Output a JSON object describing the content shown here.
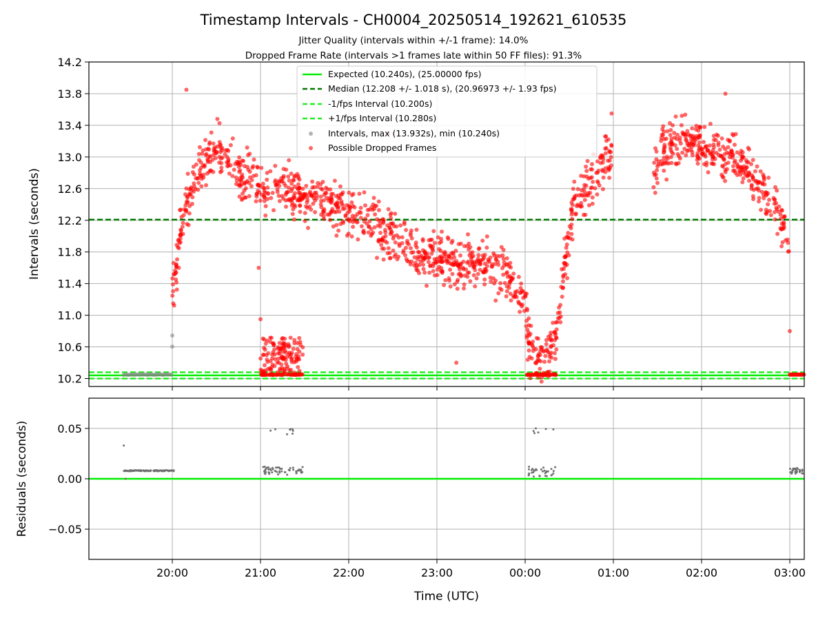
{
  "chart_data": {
    "type": "scatter",
    "title": "Timestamp Intervals - CH0004_20250514_192621_610535",
    "subtitle_lines": [
      "Jitter Quality (intervals within +/-1 frame): 14.0%",
      "Dropped Frame Rate (intervals >1 frames late within 50 FF files): 91.3%"
    ],
    "xlabel": "Time (UTC)",
    "x_ticks": [
      "20:00",
      "21:00",
      "22:00",
      "23:00",
      "00:00",
      "01:00",
      "02:00",
      "03:00"
    ],
    "grid": true,
    "legend_position": "top-center",
    "colors": {
      "expected": "#00ee00",
      "median": "#007700",
      "fps_bounds": "#22ee22",
      "intervals": "#808080",
      "dropped": "#ff0000",
      "residuals": "#707070"
    },
    "top_panel": {
      "ylabel": "Intervals (seconds)",
      "ylim": [
        10.1,
        14.2
      ],
      "y_ticks": [
        "10.2",
        "10.6",
        "11.0",
        "11.4",
        "11.8",
        "12.2",
        "12.6",
        "13.0",
        "13.4",
        "13.8",
        "14.2"
      ],
      "reference_lines": [
        {
          "name": "Expected (10.240s), (25.00000 fps)",
          "y": 10.24,
          "style": "solid",
          "color_key": "expected"
        },
        {
          "name": "Median (12.208 +/- 1.018 s), (20.96973 +/- 1.93 fps)",
          "y": 12.208,
          "style": "dashed",
          "color_key": "median"
        },
        {
          "name": "-1/fps Interval (10.200s)",
          "y": 10.2,
          "style": "dashed",
          "color_key": "fps_bounds"
        },
        {
          "name": "+1/fps Interval (10.280s)",
          "y": 10.28,
          "style": "dashed",
          "color_key": "fps_bounds"
        }
      ],
      "series": [
        {
          "name": "Intervals, max (13.932s), min (10.240s)",
          "color_key": "intervals",
          "segments": [
            {
              "x_start": -0.55,
              "x_end": -0.01,
              "y": 10.25,
              "count": 28
            },
            {
              "x_start": 0.0,
              "x_end": 0.0,
              "y": 10.6,
              "count": 1
            },
            {
              "x_start": 0.0,
              "x_end": 0.0,
              "y": 10.74,
              "count": 1
            }
          ]
        },
        {
          "name": "Possible Dropped Frames",
          "color_key": "dropped",
          "trend": [
            [
              0.0,
              11.25
            ],
            [
              0.08,
              11.9
            ],
            [
              0.15,
              12.4
            ],
            [
              0.3,
              12.8
            ],
            [
              0.5,
              13.1
            ],
            [
              0.75,
              12.8
            ],
            [
              1.0,
              12.65
            ],
            [
              1.5,
              12.5
            ],
            [
              2.0,
              12.35
            ],
            [
              2.4,
              12.05
            ],
            [
              2.75,
              11.8
            ],
            [
              3.2,
              11.65
            ],
            [
              3.5,
              11.65
            ],
            [
              3.8,
              11.5
            ],
            [
              3.98,
              11.2
            ],
            [
              4.05,
              10.6
            ],
            [
              4.2,
              10.4
            ],
            [
              4.35,
              10.7
            ],
            [
              4.45,
              11.6
            ],
            [
              4.55,
              12.4
            ],
            [
              4.7,
              12.6
            ],
            [
              4.85,
              12.85
            ],
            [
              4.98,
              13.1
            ]
          ],
          "spread": 0.28,
          "count": 1150,
          "extra_groups": [
            {
              "x_start": 4.02,
              "x_end": 4.36,
              "y": 10.25,
              "count": 40
            },
            {
              "x_start": 1.0,
              "x_end": 1.48,
              "y_min": 10.25,
              "y_max": 10.72,
              "count": 130
            },
            {
              "x_start": 1.0,
              "x_end": 1.48,
              "y": 10.25,
              "count": 50
            }
          ],
          "late_trend": [
            [
              5.45,
              12.8
            ],
            [
              5.6,
              13.1
            ],
            [
              5.8,
              13.2
            ],
            [
              6.0,
              13.1
            ],
            [
              6.2,
              13.05
            ],
            [
              6.4,
              13.0
            ],
            [
              6.6,
              12.7
            ],
            [
              6.8,
              12.4
            ],
            [
              6.95,
              12.1
            ],
            [
              7.0,
              11.8
            ]
          ],
          "late_spread": 0.28,
          "late_count": 360,
          "tail": {
            "x_start": 7.0,
            "x_end": 7.16,
            "y": 10.25,
            "count": 25
          },
          "outliers": [
            {
              "x": 0.16,
              "y": 13.85
            },
            {
              "x": 6.27,
              "y": 13.8
            },
            {
              "x": 4.98,
              "y": 13.55
            },
            {
              "x": 4.88,
              "y": 13.0
            },
            {
              "x": 1.0,
              "y": 10.95
            },
            {
              "x": 0.98,
              "y": 11.6
            },
            {
              "x": 7.0,
              "y": 10.8
            },
            {
              "x": 2.45,
              "y": 13.3
            },
            {
              "x": 3.22,
              "y": 10.4
            }
          ]
        }
      ]
    },
    "bottom_panel": {
      "ylabel": "Residuals (seconds)",
      "ylim": [
        -0.08,
        0.08
      ],
      "y_ticks": [
        "−0.05",
        "0.00",
        "0.05"
      ],
      "y_tick_values": [
        -0.05,
        0.0,
        0.05
      ],
      "zero_line": {
        "y": 0.0,
        "color_key": "expected"
      },
      "series": [
        {
          "name": "residuals",
          "color_key": "residuals",
          "groups": [
            {
              "x_start": -0.55,
              "x_end": 0.02,
              "y_min": 0.0075,
              "y_max": 0.0085,
              "count": 110
            },
            {
              "x_start": 4.02,
              "x_end": 4.35,
              "y_min": 0.002,
              "y_max": 0.012,
              "count": 32
            },
            {
              "x_start": 4.05,
              "x_end": 4.32,
              "y_min": 0.045,
              "y_max": 0.05,
              "count": 6
            },
            {
              "x_start": 1.03,
              "x_end": 1.48,
              "y_min": 0.004,
              "y_max": 0.012,
              "count": 55
            },
            {
              "x_start": 1.05,
              "x_end": 1.4,
              "y_min": 0.044,
              "y_max": 0.05,
              "count": 8
            },
            {
              "x_start": 7.0,
              "x_end": 7.16,
              "y_min": 0.005,
              "y_max": 0.011,
              "count": 30
            }
          ],
          "points": [
            {
              "x": -0.55,
              "y": 0.033
            },
            {
              "x": -0.53,
              "y": 0.0
            }
          ]
        }
      ]
    }
  }
}
